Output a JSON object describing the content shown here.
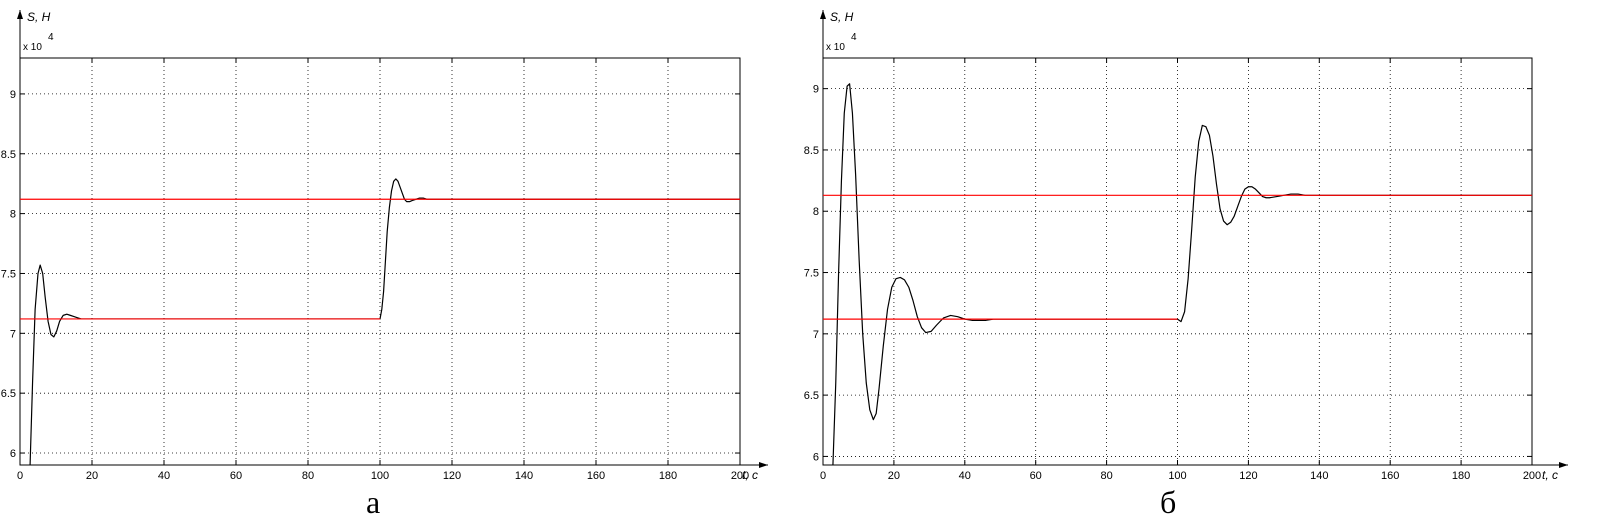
{
  "chart_data": [
    {
      "type": "line",
      "title": "",
      "caption": "а",
      "ylabel": "S, H",
      "xlabel": "t, c",
      "y_multiplier": "x 10",
      "y_multiplier_exp": "4",
      "xlim": [
        0,
        200
      ],
      "ylim": [
        5.9,
        9.3
      ],
      "grid": true,
      "x_ticks": [
        0,
        20,
        40,
        60,
        80,
        100,
        120,
        140,
        160,
        180,
        200
      ],
      "x_tick_labels": [
        "0",
        "20",
        "40",
        "60",
        "80",
        "100",
        "120",
        "140",
        "160",
        "180",
        "200"
      ],
      "y_ticks": [
        6,
        6.5,
        7,
        7.5,
        8,
        8.5,
        9
      ],
      "y_tick_labels": [
        "6",
        "6.5",
        "7",
        "7.5",
        "8",
        "8.5",
        "9"
      ],
      "series": [
        {
          "color": "#000000",
          "x": [
            2.8,
            3.5,
            4.2,
            5,
            5.6,
            6.3,
            7,
            7.8,
            8.6,
            9.4,
            10.2,
            11,
            12,
            13,
            14,
            15,
            16,
            17,
            18,
            20,
            40,
            60,
            80,
            100,
            100.5,
            101,
            101.5,
            102,
            102.6,
            103.2,
            103.8,
            104.4,
            105,
            105.6,
            106.2,
            106.8,
            107.4,
            108.2,
            109,
            110,
            111,
            112,
            113,
            114,
            116,
            120,
            140,
            160,
            180,
            200
          ],
          "y": [
            5.9,
            6.6,
            7.2,
            7.5,
            7.57,
            7.5,
            7.3,
            7.1,
            6.99,
            6.97,
            7.02,
            7.1,
            7.15,
            7.16,
            7.15,
            7.14,
            7.13,
            7.12,
            7.12,
            7.12,
            7.12,
            7.12,
            7.12,
            7.12,
            7.2,
            7.35,
            7.6,
            7.85,
            8.05,
            8.19,
            8.27,
            8.29,
            8.27,
            8.22,
            8.17,
            8.12,
            8.1,
            8.1,
            8.11,
            8.12,
            8.13,
            8.13,
            8.12,
            8.12,
            8.12,
            8.12,
            8.12,
            8.12,
            8.12,
            8.12
          ]
        },
        {
          "color": "#ff0000",
          "x": [
            0,
            100
          ],
          "y": [
            7.12,
            7.12
          ]
        },
        {
          "color": "#ff0000",
          "x": [
            0,
            200
          ],
          "y": [
            8.12,
            8.12
          ]
        }
      ]
    },
    {
      "type": "line",
      "title": "",
      "caption": "б",
      "ylabel": "S, H",
      "xlabel": "t, c",
      "y_multiplier": "x 10",
      "y_multiplier_exp": "4",
      "xlim": [
        0,
        200
      ],
      "ylim": [
        5.93,
        9.25
      ],
      "grid": true,
      "x_ticks": [
        0,
        20,
        40,
        60,
        80,
        100,
        120,
        140,
        160,
        180,
        200
      ],
      "x_tick_labels": [
        "0",
        "20",
        "40",
        "60",
        "80",
        "100",
        "120",
        "140",
        "160",
        "180",
        "200"
      ],
      "y_ticks": [
        6,
        6.5,
        7,
        7.5,
        8,
        8.5,
        9
      ],
      "y_tick_labels": [
        "6",
        "6.5",
        "7",
        "7.5",
        "8",
        "8.5",
        "9"
      ],
      "series": [
        {
          "color": "#000000",
          "x": [
            2.8,
            3.6,
            4.4,
            5.2,
            6,
            6.8,
            7.5,
            8.3,
            9.2,
            10.2,
            11.2,
            12.2,
            13.2,
            14.2,
            15,
            15.8,
            17,
            18.2,
            19.4,
            20.6,
            21.8,
            23,
            24.2,
            25.4,
            26.6,
            27.8,
            29,
            30.5,
            32,
            34,
            36,
            38,
            40,
            42,
            44,
            46,
            48,
            50,
            55,
            60,
            70,
            80,
            90,
            100,
            101,
            102,
            103,
            104,
            105,
            106,
            107,
            108,
            109,
            110,
            111,
            112,
            113,
            114,
            115,
            116,
            117,
            118,
            119,
            120,
            121,
            122,
            123,
            124,
            125,
            126,
            128,
            130,
            132,
            134,
            136,
            138,
            140,
            145,
            150,
            160,
            180,
            200
          ],
          "y": [
            5.93,
            6.6,
            7.5,
            8.25,
            8.8,
            9.02,
            9.04,
            8.8,
            8.3,
            7.6,
            7.0,
            6.6,
            6.38,
            6.3,
            6.35,
            6.55,
            6.9,
            7.2,
            7.38,
            7.45,
            7.46,
            7.44,
            7.38,
            7.27,
            7.14,
            7.05,
            7.01,
            7.02,
            7.07,
            7.13,
            7.15,
            7.14,
            7.12,
            7.11,
            7.11,
            7.11,
            7.12,
            7.12,
            7.12,
            7.12,
            7.12,
            7.12,
            7.12,
            7.12,
            7.1,
            7.18,
            7.45,
            7.85,
            8.28,
            8.57,
            8.7,
            8.69,
            8.62,
            8.45,
            8.22,
            8.02,
            7.92,
            7.89,
            7.91,
            7.96,
            8.04,
            8.12,
            8.18,
            8.2,
            8.2,
            8.18,
            8.15,
            8.12,
            8.11,
            8.11,
            8.12,
            8.13,
            8.14,
            8.14,
            8.13,
            8.13,
            8.13,
            8.13,
            8.13,
            8.13,
            8.13,
            8.13
          ]
        },
        {
          "color": "#ff0000",
          "x": [
            0,
            100
          ],
          "y": [
            7.12,
            7.12
          ]
        },
        {
          "color": "#ff0000",
          "x": [
            0,
            200
          ],
          "y": [
            8.13,
            8.13
          ]
        }
      ]
    }
  ]
}
